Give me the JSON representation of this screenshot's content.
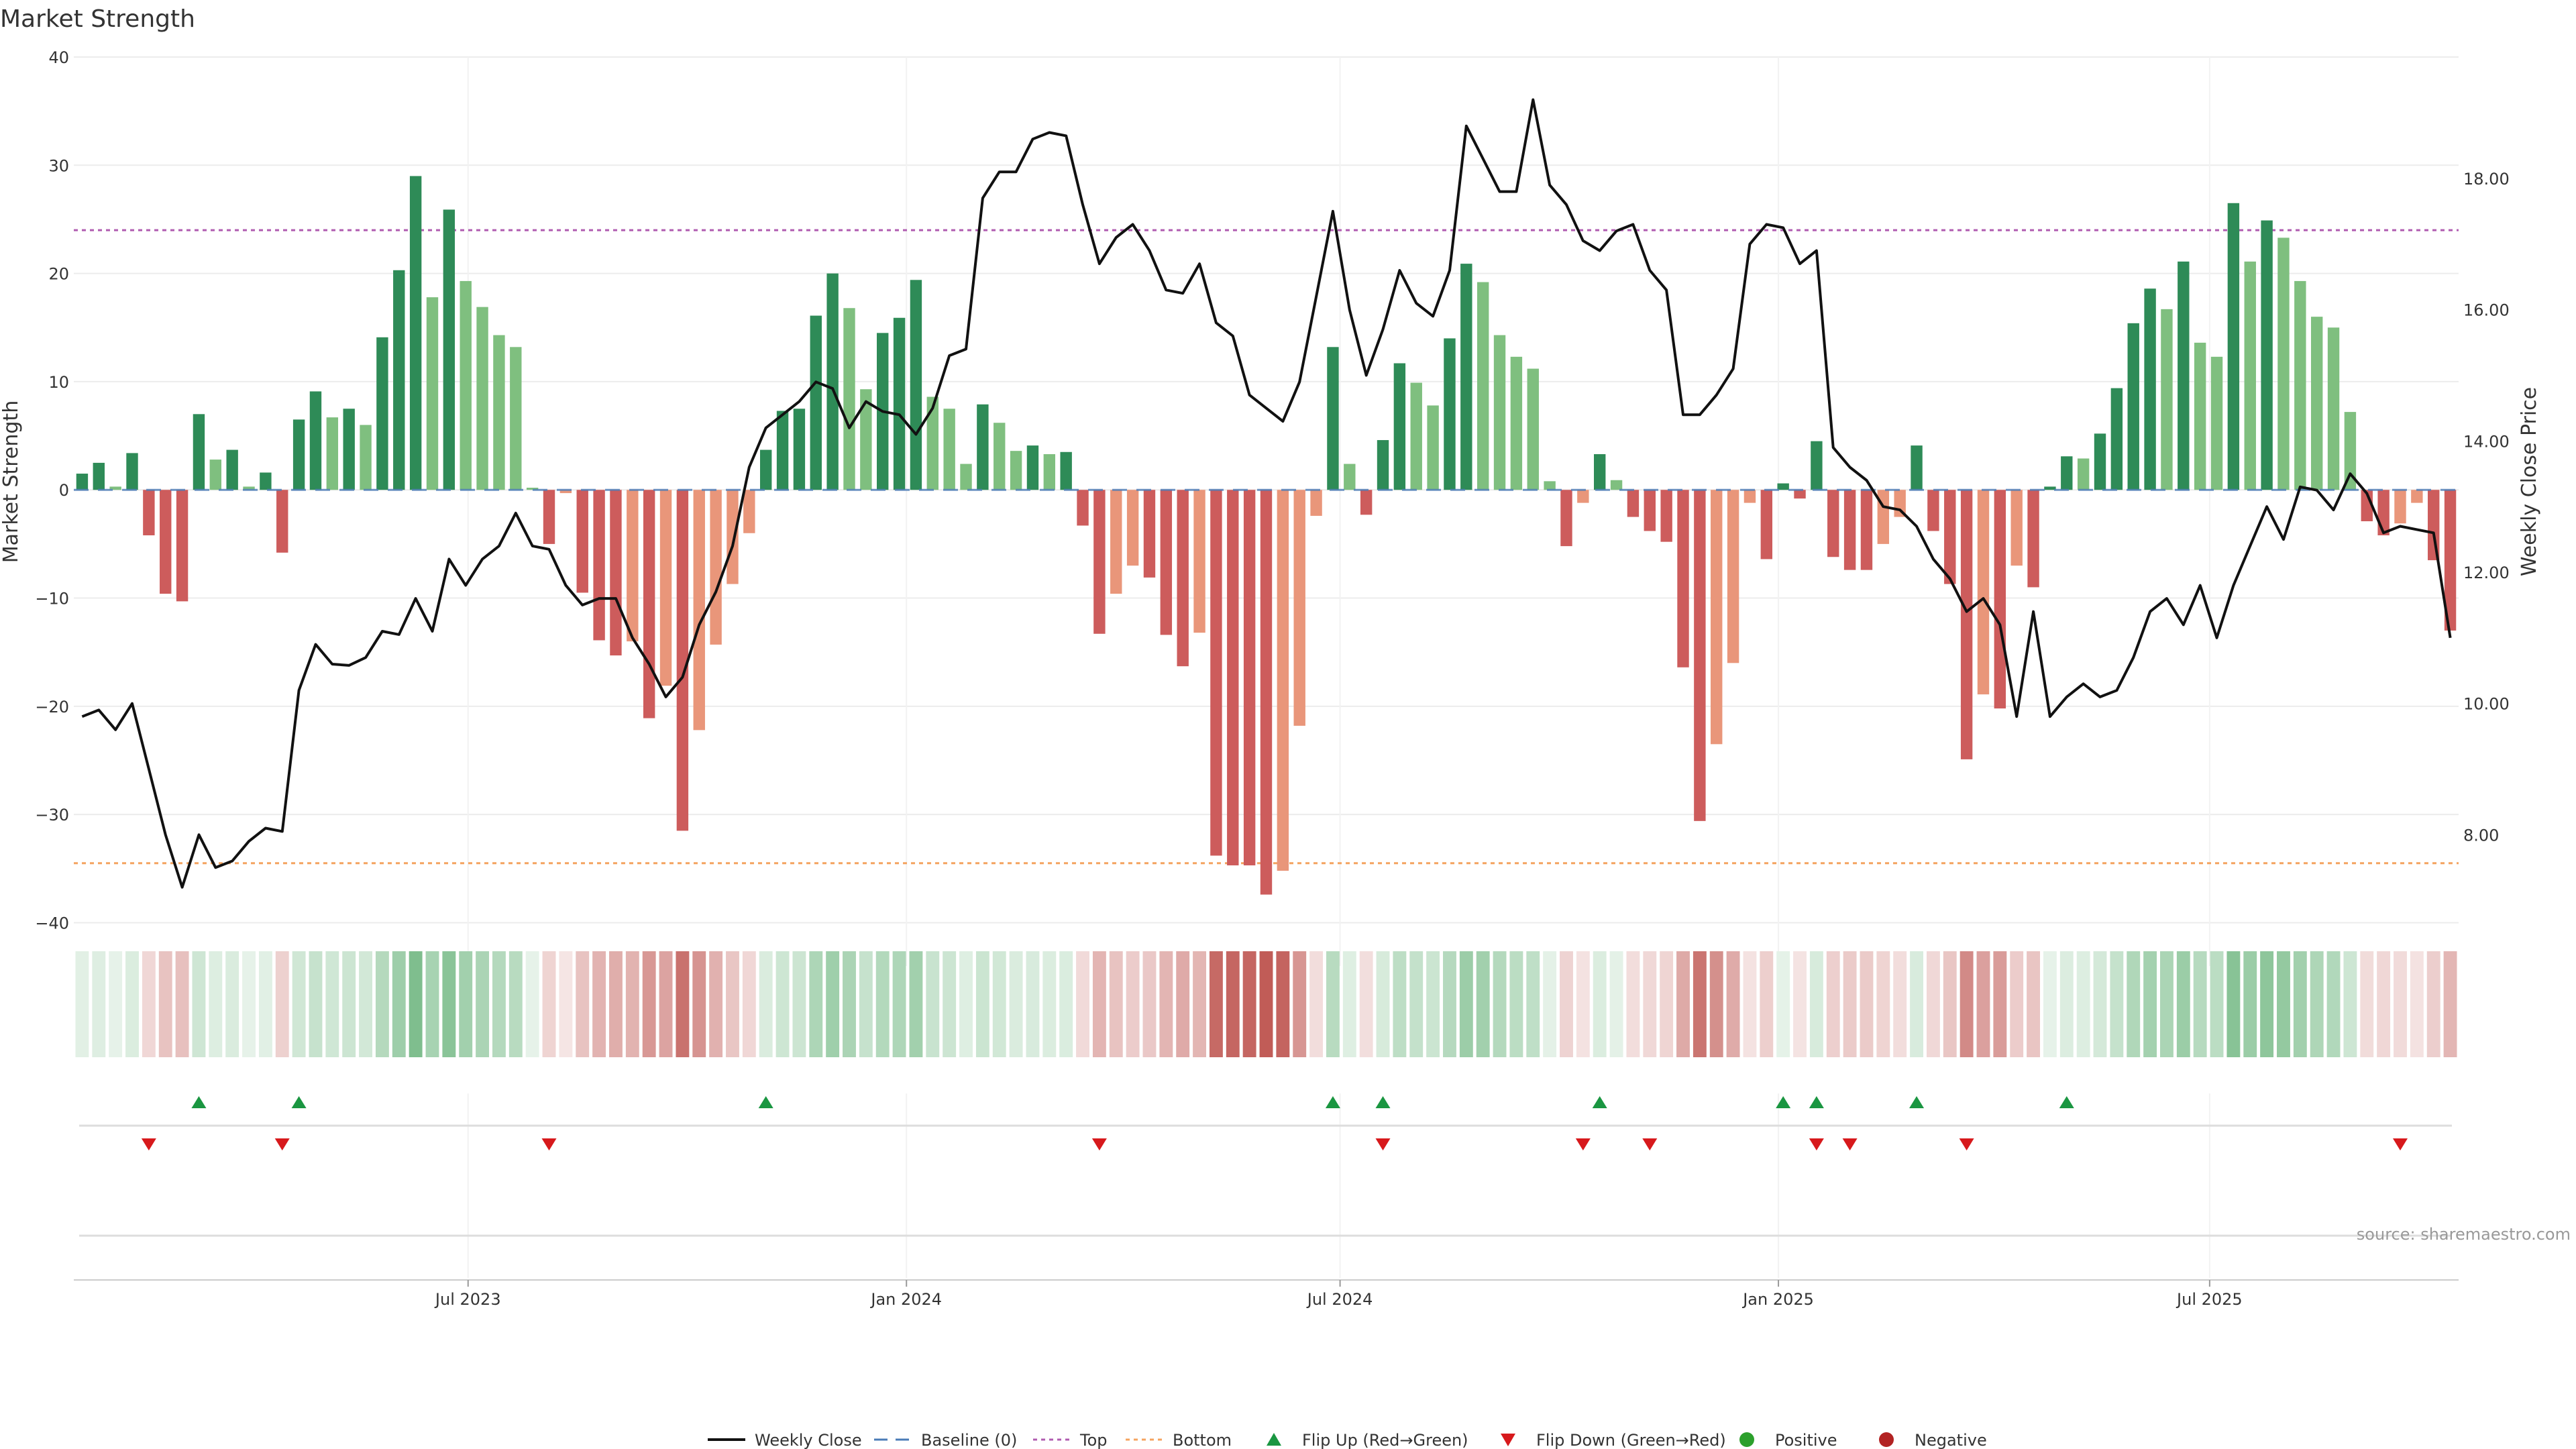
{
  "chart_data": {
    "type": "bar",
    "title": "Market Strength",
    "ylabel": "Market Strength",
    "y2label": "Weekly Close Price",
    "ylim": [
      -44,
      40
    ],
    "y2lim": [
      6.0,
      19.85
    ],
    "yticks": [
      40,
      30,
      20,
      10,
      0,
      -10,
      -20,
      -30,
      -40
    ],
    "yticks_labels": [
      "40",
      "30",
      "20",
      "10",
      "0",
      "−10",
      "−20",
      "−30",
      "−40"
    ],
    "y2ticks": [
      18,
      16,
      14,
      12,
      10,
      8
    ],
    "y2ticks_labels": [
      "18.00",
      "16.00",
      "14.00",
      "12.00",
      "10.00",
      "8.00"
    ],
    "x_start": "2023-01-20",
    "x_end": "2025-11-21",
    "x_step_weeks": 1,
    "xticks": [
      {
        "date": "2023-07-01",
        "label": "Jul 2023"
      },
      {
        "date": "2024-01-01",
        "label": "Jan 2024"
      },
      {
        "date": "2024-07-01",
        "label": "Jul 2024"
      },
      {
        "date": "2025-01-01",
        "label": "Jan 2025"
      },
      {
        "date": "2025-07-01",
        "label": "Jul 2025"
      }
    ],
    "top_level": 24,
    "bottom_level": -34.5,
    "grid": true,
    "legend_position": "bottom",
    "series": [
      {
        "name": "Weekly Close",
        "values": [
          9.8,
          9.9,
          9.6,
          10.0,
          9.0,
          8.0,
          7.2,
          8.0,
          7.5,
          7.6,
          7.9,
          8.1,
          8.05,
          10.2,
          10.9,
          10.6,
          10.58,
          10.7,
          11.1,
          11.05,
          11.6,
          11.1,
          12.2,
          11.8,
          12.2,
          12.4,
          12.9,
          12.4,
          12.35,
          11.8,
          11.5,
          11.6,
          11.6,
          11.0,
          10.6,
          10.1,
          10.4,
          11.2,
          11.7,
          12.4,
          13.6,
          14.2,
          14.4,
          14.6,
          14.9,
          14.8,
          14.2,
          14.6,
          14.45,
          14.4,
          14.1,
          14.5,
          15.3,
          15.4,
          17.7,
          18.1,
          18.1,
          18.6,
          18.7,
          18.65,
          17.6,
          16.7,
          17.1,
          17.3,
          16.9,
          16.3,
          16.25,
          16.7,
          15.8,
          15.6,
          14.7,
          14.5,
          14.3,
          14.9,
          16.2,
          17.5,
          16.0,
          15.0,
          15.7,
          16.6,
          16.1,
          15.9,
          16.6,
          18.8,
          18.3,
          17.8,
          17.8,
          19.2,
          17.9,
          17.6,
          17.05,
          16.9,
          17.2,
          17.3,
          16.6,
          16.3,
          14.4,
          14.4,
          14.7,
          15.1,
          17.0,
          17.3,
          17.25,
          16.7,
          16.9,
          13.9,
          13.6,
          13.4,
          13.0,
          12.95,
          12.7,
          12.2,
          11.9,
          11.4,
          11.6,
          11.2,
          9.8,
          11.4,
          9.8,
          10.1,
          10.3,
          10.1,
          10.2,
          10.7,
          11.4,
          11.6,
          11.2,
          11.8,
          11.0,
          11.8,
          12.4,
          13.0,
          12.5,
          13.3,
          13.25,
          12.95,
          13.5,
          13.2,
          12.6,
          12.7,
          12.65,
          12.6,
          11.0
        ]
      },
      {
        "name": "Market Strength",
        "values": [
          1.5,
          2.5,
          0.3,
          3.4,
          -4.2,
          -9.6,
          -10.3,
          7.0,
          2.8,
          3.7,
          0.3,
          1.6,
          -5.8,
          6.5,
          9.1,
          6.7,
          7.5,
          6.0,
          14.1,
          20.3,
          29.0,
          17.8,
          25.9,
          19.3,
          16.9,
          14.3,
          13.2,
          0.2,
          -5.0,
          -0.3,
          -9.5,
          -13.9,
          -15.3,
          -14.0,
          -21.1,
          -18.1,
          -31.5,
          -22.2,
          -14.3,
          -8.7,
          -4.0,
          3.7,
          7.3,
          7.5,
          16.1,
          20.0,
          16.8,
          9.3,
          14.5,
          15.9,
          19.4,
          8.6,
          7.5,
          2.4,
          7.9,
          6.2,
          3.6,
          4.1,
          3.3,
          3.5,
          -3.3,
          -13.3,
          -9.6,
          -7.0,
          -8.1,
          -13.4,
          -16.3,
          -13.2,
          -33.8,
          -34.7,
          -34.7,
          -37.4,
          -35.2,
          -21.8,
          -2.4,
          13.2,
          2.4,
          -2.3,
          4.6,
          11.7,
          9.9,
          7.8,
          14.0,
          20.9,
          19.2,
          14.3,
          12.3,
          11.2,
          0.8,
          -5.2,
          -1.2,
          3.3,
          0.9,
          -2.5,
          -3.8,
          -4.8,
          -16.4,
          -30.6,
          -23.5,
          -16.0,
          -1.2,
          -6.4,
          0.6,
          -0.8,
          4.5,
          -6.2,
          -7.4,
          -7.4,
          -5.0,
          -2.5,
          4.1,
          -3.8,
          -8.7,
          -24.9,
          -18.9,
          -20.2,
          -7.0,
          -9.0,
          0.3,
          3.1,
          2.9,
          5.2,
          9.4,
          15.4,
          18.6,
          16.7,
          21.1,
          13.6,
          12.3,
          26.5,
          21.1,
          24.9,
          23.3,
          19.3,
          16.0,
          15.0,
          7.2,
          -2.9,
          -4.2,
          -3.1,
          -1.2,
          -6.5,
          -13.0
        ]
      }
    ],
    "flip_up_x": [
      7,
      13,
      41,
      75,
      78,
      91,
      102,
      104,
      110,
      119
    ],
    "flip_down_x": [
      4,
      12,
      28,
      61,
      78,
      90,
      94,
      104,
      106,
      113,
      139
    ],
    "legend": [
      {
        "key": "weekly_close",
        "label": "Weekly Close"
      },
      {
        "key": "baseline",
        "label": "Baseline (0)"
      },
      {
        "key": "top",
        "label": "Top"
      },
      {
        "key": "bottom",
        "label": "Bottom"
      },
      {
        "key": "flip_up",
        "label": "Flip Up (Red→Green)"
      },
      {
        "key": "flip_down",
        "label": "Flip Down (Green→Red)"
      },
      {
        "key": "positive",
        "label": "Positive"
      },
      {
        "key": "negative",
        "label": "Negative"
      }
    ],
    "source": "source: sharemaestro.com",
    "colors": {
      "strong_pos": "#2e8b57",
      "weak_pos": "#7fbf7f",
      "strong_neg": "#cd5c5c",
      "weak_neg": "#e9967a",
      "close_line": "#111111",
      "baseline": "#4a7bb7",
      "top": "#b05cb0",
      "bottom": "#f4a460",
      "flip_up": "#1a9641",
      "flip_down": "#d7191c",
      "positive_dot": "#2ca02c",
      "negative_dot": "#b22222"
    }
  }
}
